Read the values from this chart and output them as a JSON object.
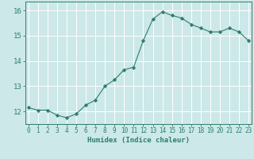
{
  "xlabel": "Humidex (Indice chaleur)",
  "ylabel": "",
  "x": [
    0,
    1,
    2,
    3,
    4,
    5,
    6,
    7,
    8,
    9,
    10,
    11,
    12,
    13,
    14,
    15,
    16,
    17,
    18,
    19,
    20,
    21,
    22,
    23
  ],
  "y": [
    12.15,
    12.05,
    12.05,
    11.85,
    11.75,
    11.9,
    12.25,
    12.45,
    13.0,
    13.25,
    13.65,
    13.75,
    14.8,
    15.65,
    15.95,
    15.8,
    15.7,
    15.45,
    15.3,
    15.15,
    15.15,
    15.3,
    15.15,
    14.8
  ],
  "line_color": "#2e7d6e",
  "marker": "D",
  "marker_size": 2.2,
  "bg_color": "#cce8e8",
  "grid_color": "#ffffff",
  "tick_color": "#2e7d6e",
  "label_color": "#2e7d6e",
  "ylim": [
    11.5,
    16.35
  ],
  "yticks": [
    12,
    13,
    14,
    15,
    16
  ],
  "xticks": [
    0,
    1,
    2,
    3,
    4,
    5,
    6,
    7,
    8,
    9,
    10,
    11,
    12,
    13,
    14,
    15,
    16,
    17,
    18,
    19,
    20,
    21,
    22,
    23
  ],
  "xlim": [
    -0.3,
    23.3
  ]
}
